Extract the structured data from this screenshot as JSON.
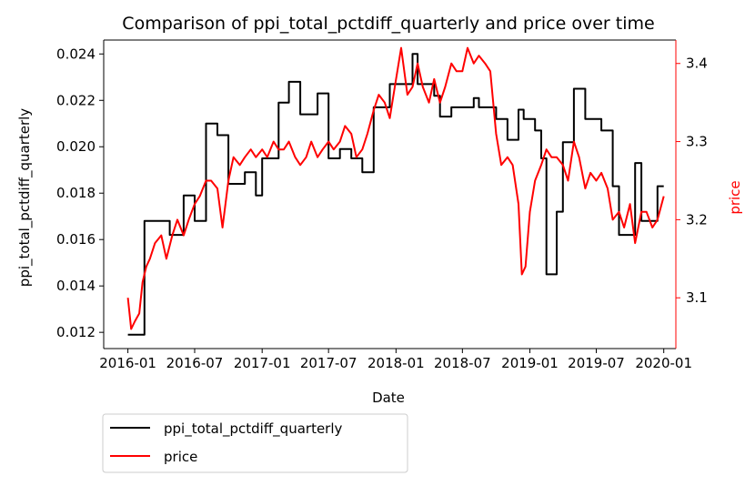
{
  "chart_data": {
    "type": "line",
    "title": "Comparison of ppi_total_pctdiff_quarterly and price over time",
    "xlabel": "Date",
    "ylabel_left": "ppi_total_pctdiff_quarterly",
    "ylabel_right": "price",
    "xlim": [
      "2015-10-27",
      "2020-02-03"
    ],
    "ylim_left": [
      0.0113,
      0.0246
    ],
    "ylim_right": [
      3.035,
      3.43
    ],
    "x_ticks": [
      "2016-01",
      "2016-07",
      "2017-01",
      "2017-07",
      "2018-01",
      "2018-07",
      "2019-01",
      "2019-07",
      "2020-01"
    ],
    "y_ticks_left": [
      "0.012",
      "0.014",
      "0.016",
      "0.018",
      "0.020",
      "0.022",
      "0.024"
    ],
    "y_ticks_right": [
      "3.1",
      "3.2",
      "3.3",
      "3.4"
    ],
    "grid": false,
    "legend_position": "below-left",
    "colors": {
      "ppi": "#000000",
      "price": "#ff0000"
    },
    "series": [
      {
        "name": "ppi_total_pctdiff_quarterly",
        "axis": "left",
        "step": true,
        "x": [
          "2016-01-01",
          "2016-01-24",
          "2016-02-15",
          "2016-04-01",
          "2016-04-24",
          "2016-05-15",
          "2016-06-01",
          "2016-07-01",
          "2016-08-01",
          "2016-09-01",
          "2016-09-15",
          "2016-10-01",
          "2016-10-15",
          "2016-11-15",
          "2016-12-15",
          "2017-01-01",
          "2017-01-15",
          "2017-02-15",
          "2017-03-15",
          "2017-04-15",
          "2017-05-15",
          "2017-06-01",
          "2017-07-01",
          "2017-08-01",
          "2017-09-01",
          "2017-10-01",
          "2017-10-15",
          "2017-11-01",
          "2017-11-24",
          "2017-12-15",
          "2018-02-15",
          "2018-03-01",
          "2018-03-15",
          "2018-04-15",
          "2018-05-01",
          "2018-06-01",
          "2018-08-01",
          "2018-08-15",
          "2018-09-01",
          "2018-10-01",
          "2018-11-01",
          "2018-12-01",
          "2018-12-15",
          "2019-01-15",
          "2019-02-01",
          "2019-02-15",
          "2019-03-15",
          "2019-04-01",
          "2019-05-01",
          "2019-06-01",
          "2019-06-15",
          "2019-07-15",
          "2019-08-15",
          "2019-09-01",
          "2019-09-15",
          "2019-10-15",
          "2019-11-01",
          "2019-11-24",
          "2019-12-15",
          "2020-01-01"
        ],
        "values": [
          0.0119,
          0.0119,
          0.0168,
          0.0168,
          0.0162,
          0.0162,
          0.0179,
          0.0168,
          0.021,
          0.0205,
          0.0205,
          0.0184,
          0.0184,
          0.0189,
          0.0179,
          0.0195,
          0.0195,
          0.0219,
          0.0228,
          0.0214,
          0.0214,
          0.0223,
          0.0195,
          0.0199,
          0.0195,
          0.0189,
          0.0189,
          0.0217,
          0.0217,
          0.0227,
          0.024,
          0.0227,
          0.0227,
          0.0222,
          0.0213,
          0.0217,
          0.0221,
          0.0217,
          0.0217,
          0.0212,
          0.0203,
          0.0216,
          0.0212,
          0.0207,
          0.0195,
          0.0145,
          0.0172,
          0.0202,
          0.0225,
          0.0212,
          0.0212,
          0.0207,
          0.0183,
          0.0162,
          0.0162,
          0.0193,
          0.0168,
          0.0168,
          0.0183,
          0.0183
        ]
      },
      {
        "name": "price",
        "axis": "right",
        "step": false,
        "x": [
          "2016-01-01",
          "2016-01-10",
          "2016-01-20",
          "2016-02-01",
          "2016-02-10",
          "2016-02-20",
          "2016-03-01",
          "2016-03-15",
          "2016-04-01",
          "2016-04-15",
          "2016-05-01",
          "2016-05-15",
          "2016-06-01",
          "2016-06-15",
          "2016-07-01",
          "2016-07-15",
          "2016-08-01",
          "2016-08-15",
          "2016-09-01",
          "2016-09-15",
          "2016-10-01",
          "2016-10-15",
          "2016-11-01",
          "2016-11-15",
          "2016-12-01",
          "2016-12-15",
          "2017-01-01",
          "2017-01-15",
          "2017-02-01",
          "2017-02-15",
          "2017-03-01",
          "2017-03-15",
          "2017-04-01",
          "2017-04-15",
          "2017-05-01",
          "2017-05-15",
          "2017-06-01",
          "2017-06-15",
          "2017-07-01",
          "2017-07-15",
          "2017-08-01",
          "2017-08-15",
          "2017-09-01",
          "2017-09-15",
          "2017-10-01",
          "2017-10-15",
          "2017-11-01",
          "2017-11-15",
          "2017-12-01",
          "2017-12-15",
          "2018-01-01",
          "2018-01-15",
          "2018-02-01",
          "2018-02-15",
          "2018-03-01",
          "2018-03-15",
          "2018-04-01",
          "2018-04-15",
          "2018-05-01",
          "2018-05-15",
          "2018-06-01",
          "2018-06-15",
          "2018-07-01",
          "2018-07-15",
          "2018-08-01",
          "2018-08-15",
          "2018-09-01",
          "2018-09-15",
          "2018-10-01",
          "2018-10-15",
          "2018-11-01",
          "2018-11-15",
          "2018-12-01",
          "2018-12-10",
          "2018-12-20",
          "2019-01-01",
          "2019-01-15",
          "2019-02-01",
          "2019-02-15",
          "2019-03-01",
          "2019-03-15",
          "2019-04-01",
          "2019-04-15",
          "2019-05-01",
          "2019-05-15",
          "2019-06-01",
          "2019-06-15",
          "2019-07-01",
          "2019-07-15",
          "2019-08-01",
          "2019-08-15",
          "2019-09-01",
          "2019-09-15",
          "2019-10-01",
          "2019-10-15",
          "2019-11-01",
          "2019-11-15",
          "2019-12-01",
          "2019-12-15",
          "2020-01-01"
        ],
        "values": [
          3.1,
          3.06,
          3.07,
          3.08,
          3.12,
          3.14,
          3.15,
          3.17,
          3.18,
          3.15,
          3.18,
          3.2,
          3.18,
          3.2,
          3.22,
          3.23,
          3.25,
          3.25,
          3.24,
          3.19,
          3.25,
          3.28,
          3.27,
          3.28,
          3.29,
          3.28,
          3.29,
          3.28,
          3.3,
          3.29,
          3.29,
          3.3,
          3.28,
          3.27,
          3.28,
          3.3,
          3.28,
          3.29,
          3.3,
          3.29,
          3.3,
          3.32,
          3.31,
          3.28,
          3.29,
          3.31,
          3.34,
          3.36,
          3.35,
          3.33,
          3.38,
          3.42,
          3.36,
          3.37,
          3.4,
          3.37,
          3.35,
          3.38,
          3.35,
          3.37,
          3.4,
          3.39,
          3.39,
          3.42,
          3.4,
          3.41,
          3.4,
          3.39,
          3.31,
          3.27,
          3.28,
          3.27,
          3.22,
          3.13,
          3.14,
          3.21,
          3.25,
          3.27,
          3.29,
          3.28,
          3.28,
          3.27,
          3.25,
          3.3,
          3.28,
          3.24,
          3.26,
          3.25,
          3.26,
          3.24,
          3.2,
          3.21,
          3.19,
          3.22,
          3.17,
          3.21,
          3.21,
          3.19,
          3.2,
          3.23
        ]
      }
    ]
  }
}
